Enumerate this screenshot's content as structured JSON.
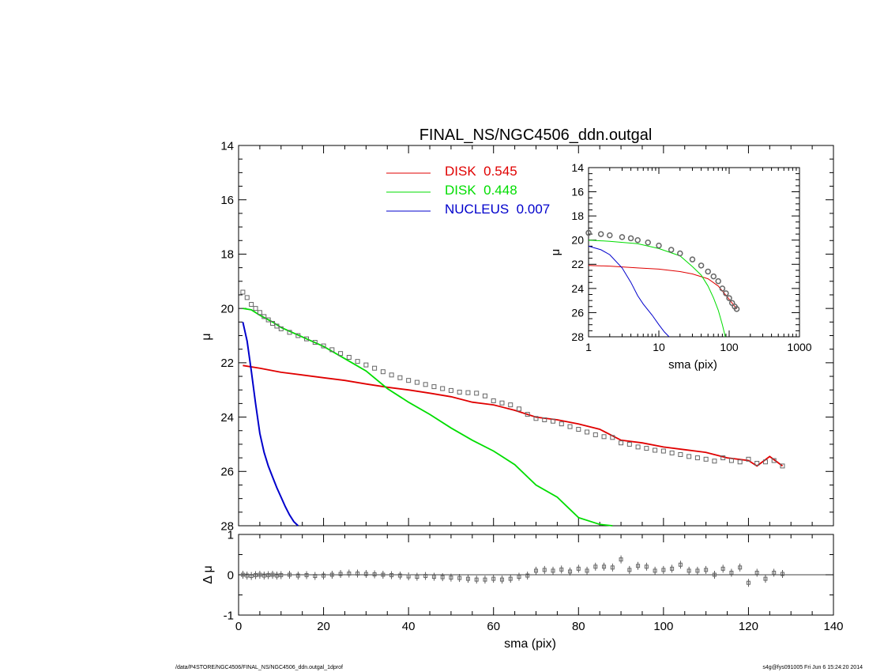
{
  "title": "FINAL_NS/NGC4506_ddn.outgal",
  "footer": {
    "left": "/data/P4STORE/NGC4506/FINAL_NS/NGC4506_ddn.outgal_1dprof",
    "right": "s4g@fys091005  Fri Jun  6 15:24:20 2014"
  },
  "colors": {
    "disk1": "#e00000",
    "disk2": "#00dd00",
    "nucleus": "#0000cc",
    "data": "#666666",
    "axes": "#000000"
  },
  "legend": [
    {
      "key": "disk1",
      "label": "DISK  0.545"
    },
    {
      "key": "disk2",
      "label": "DISK  0.448"
    },
    {
      "key": "nucleus",
      "label": "NUCLEUS  0.007"
    }
  ],
  "chart_data": [
    {
      "type": "line",
      "panel": "main",
      "xlabel": "",
      "ylabel": "μ",
      "xlim": [
        0,
        140
      ],
      "ylim": [
        28,
        14
      ],
      "yticks": [
        14,
        16,
        18,
        20,
        22,
        24,
        26,
        28
      ],
      "series": [
        {
          "name": "DISK  0.545",
          "key": "disk1",
          "x": [
            1,
            5,
            10,
            15,
            20,
            25,
            30,
            35,
            40,
            45,
            50,
            55,
            60,
            65,
            70,
            75,
            80,
            85,
            90,
            95,
            100,
            105,
            110,
            115,
            120,
            122,
            125,
            128
          ],
          "y": [
            22.1,
            22.2,
            22.35,
            22.45,
            22.55,
            22.65,
            22.78,
            22.9,
            23.0,
            23.12,
            23.25,
            23.45,
            23.55,
            23.75,
            24.0,
            24.1,
            24.25,
            24.45,
            24.85,
            24.95,
            25.1,
            25.2,
            25.3,
            25.5,
            25.6,
            25.8,
            25.45,
            25.8
          ]
        },
        {
          "name": "DISK  0.448",
          "key": "disk2",
          "x": [
            1,
            3,
            5,
            8,
            10,
            15,
            20,
            25,
            30,
            35,
            40,
            45,
            50,
            55,
            60,
            65,
            70,
            75,
            80,
            85,
            88
          ],
          "y": [
            20.0,
            20.05,
            20.25,
            20.5,
            20.7,
            21.05,
            21.4,
            21.85,
            22.3,
            22.95,
            23.45,
            23.9,
            24.4,
            24.85,
            25.25,
            25.75,
            26.5,
            26.95,
            27.7,
            27.95,
            28.0
          ]
        },
        {
          "name": "NUCLEUS  0.007",
          "key": "nucleus",
          "x": [
            1,
            2,
            3,
            4,
            5,
            6,
            7,
            8,
            9,
            10,
            11,
            12,
            13,
            14
          ],
          "y": [
            20.5,
            21.2,
            22.3,
            23.5,
            24.6,
            25.3,
            25.8,
            26.2,
            26.6,
            26.95,
            27.3,
            27.6,
            27.85,
            28.1
          ]
        },
        {
          "name": "",
          "key": "data",
          "marker": "square",
          "x": [
            1,
            2,
            3,
            4,
            5,
            6,
            7,
            8,
            9,
            10,
            12,
            14,
            16,
            18,
            20,
            22,
            24,
            26,
            28,
            30,
            32,
            34,
            36,
            38,
            40,
            42,
            44,
            46,
            48,
            50,
            52,
            54,
            56,
            58,
            60,
            62,
            64,
            66,
            68,
            70,
            72,
            74,
            76,
            78,
            80,
            82,
            84,
            86,
            88,
            90,
            92,
            94,
            96,
            98,
            100,
            102,
            104,
            106,
            108,
            110,
            112,
            114,
            116,
            118,
            120,
            122,
            124,
            126,
            128
          ],
          "y": [
            19.4,
            19.6,
            19.85,
            20.0,
            20.15,
            20.3,
            20.42,
            20.55,
            20.65,
            20.75,
            20.88,
            21.0,
            21.12,
            21.25,
            21.38,
            21.52,
            21.66,
            21.8,
            21.95,
            22.08,
            22.2,
            22.33,
            22.45,
            22.55,
            22.65,
            22.72,
            22.8,
            22.88,
            22.95,
            23.02,
            23.08,
            23.1,
            23.12,
            23.22,
            23.4,
            23.48,
            23.55,
            23.7,
            23.9,
            24.05,
            24.1,
            24.15,
            24.25,
            24.35,
            24.45,
            24.55,
            24.65,
            24.72,
            24.75,
            24.95,
            25.0,
            25.1,
            25.15,
            25.22,
            25.25,
            25.32,
            25.38,
            25.45,
            25.5,
            25.55,
            25.62,
            25.5,
            25.6,
            25.65,
            25.55,
            25.7,
            25.65,
            25.6,
            25.8
          ]
        }
      ]
    },
    {
      "type": "scatter",
      "panel": "residual",
      "xlabel": "sma (pix)",
      "ylabel": "Δ μ",
      "xlim": [
        0,
        140
      ],
      "ylim": [
        -1,
        1
      ],
      "xticks": [
        0,
        20,
        40,
        60,
        80,
        100,
        120,
        140
      ],
      "yticks": [
        -1,
        0,
        1
      ],
      "series": [
        {
          "name": "",
          "key": "data",
          "x": [
            1,
            2,
            3,
            4,
            5,
            6,
            7,
            8,
            9,
            10,
            12,
            14,
            16,
            18,
            20,
            22,
            24,
            26,
            28,
            30,
            32,
            34,
            36,
            38,
            40,
            42,
            44,
            46,
            48,
            50,
            52,
            54,
            56,
            58,
            60,
            62,
            64,
            66,
            68,
            70,
            72,
            74,
            76,
            78,
            80,
            82,
            84,
            86,
            88,
            90,
            92,
            94,
            96,
            98,
            100,
            102,
            104,
            106,
            108,
            110,
            112,
            114,
            116,
            118,
            120,
            122,
            124,
            126,
            128
          ],
          "y": [
            0.0,
            -0.02,
            -0.03,
            -0.01,
            0.0,
            -0.02,
            -0.01,
            0.0,
            -0.02,
            -0.01,
            0.0,
            -0.02,
            -0.01,
            -0.03,
            -0.02,
            0.0,
            0.02,
            0.03,
            0.03,
            0.02,
            0.01,
            0.0,
            -0.01,
            -0.02,
            -0.04,
            -0.05,
            -0.03,
            -0.05,
            -0.06,
            -0.07,
            -0.08,
            -0.1,
            -0.12,
            -0.12,
            -0.1,
            -0.12,
            -0.1,
            -0.05,
            -0.02,
            0.1,
            0.12,
            0.1,
            0.13,
            0.08,
            0.15,
            0.1,
            0.2,
            0.2,
            0.18,
            0.38,
            0.12,
            0.22,
            0.2,
            0.1,
            0.12,
            0.15,
            0.25,
            0.1,
            0.1,
            0.12,
            0.0,
            0.15,
            0.05,
            0.18,
            -0.2,
            0.05,
            -0.1,
            0.05,
            0.02
          ]
        }
      ]
    },
    {
      "type": "line",
      "panel": "inset",
      "xlabel": "sma (pix)",
      "ylabel": "μ",
      "xscale": "log",
      "xlim": [
        1,
        1000
      ],
      "ylim": [
        28,
        14
      ],
      "xticks": [
        1,
        10,
        100,
        1000
      ],
      "yticks": [
        14,
        16,
        18,
        20,
        22,
        24,
        26,
        28
      ],
      "series": [
        {
          "name": "",
          "key": "disk1",
          "x": [
            1,
            2,
            5,
            10,
            20,
            30,
            50,
            70,
            100,
            128
          ],
          "y": [
            22.1,
            22.15,
            22.3,
            22.4,
            22.6,
            22.8,
            23.2,
            23.8,
            24.9,
            25.7
          ]
        },
        {
          "name": "",
          "key": "disk2",
          "x": [
            1,
            2,
            5,
            10,
            20,
            30,
            40,
            50,
            60,
            70,
            80,
            88
          ],
          "y": [
            20.0,
            20.1,
            20.3,
            20.7,
            21.3,
            22.2,
            22.9,
            23.8,
            24.8,
            25.8,
            27.0,
            28.0
          ]
        },
        {
          "name": "",
          "key": "nucleus",
          "x": [
            1,
            1.5,
            2,
            3,
            4,
            5,
            6,
            8,
            10,
            12,
            14
          ],
          "y": [
            20.5,
            20.8,
            21.2,
            22.3,
            23.5,
            24.6,
            25.3,
            26.2,
            27.0,
            27.6,
            28.1
          ]
        },
        {
          "name": "",
          "key": "data",
          "marker": "circle",
          "x": [
            1,
            1.5,
            2,
            3,
            4,
            5,
            7,
            10,
            15,
            20,
            30,
            40,
            50,
            60,
            70,
            80,
            90,
            100,
            110,
            120,
            128
          ],
          "y": [
            19.4,
            19.5,
            19.6,
            19.75,
            19.85,
            20.0,
            20.2,
            20.45,
            20.8,
            21.1,
            21.6,
            22.1,
            22.6,
            23.0,
            23.4,
            24.0,
            24.4,
            24.8,
            25.2,
            25.5,
            25.7
          ]
        }
      ]
    }
  ]
}
